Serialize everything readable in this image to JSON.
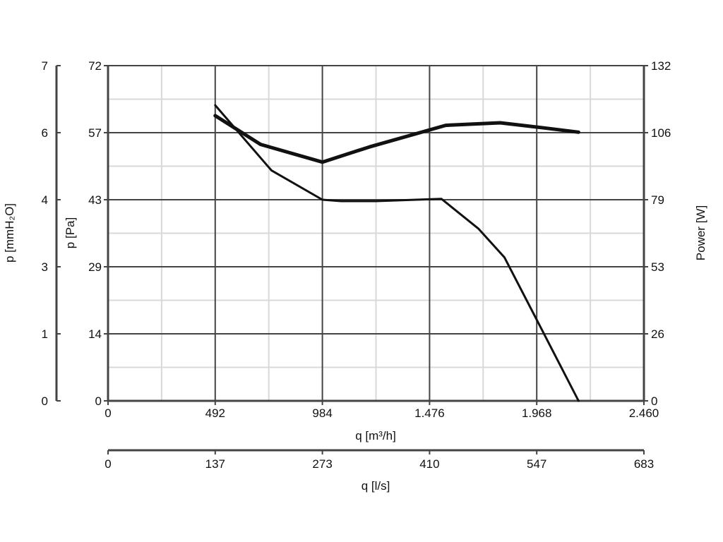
{
  "chart_data": {
    "type": "line",
    "xlabel": "q [m³/h]",
    "x_ticks": [
      "0",
      "492",
      "984",
      "1.476",
      "1.968",
      "2.460"
    ],
    "x_range": [
      0,
      2460
    ],
    "x2label": "q [l/s]",
    "x2_ticks": [
      "0",
      "137",
      "273",
      "410",
      "547",
      "683"
    ],
    "ylabel": "p [Pa]",
    "y_ticks": [
      "0",
      "14",
      "29",
      "43",
      "57",
      "72"
    ],
    "y_range": [
      0,
      72
    ],
    "y2label": "p [mmH₂O]",
    "y2_ticks": [
      "0",
      "1",
      "3",
      "4",
      "6",
      "7"
    ],
    "y3label": "Power [W]",
    "y3_ticks": [
      "0",
      "26",
      "53",
      "79",
      "106",
      "132"
    ],
    "y3_range": [
      0,
      132
    ],
    "grid": true,
    "series": [
      {
        "axis": "pressure",
        "color": "#111111",
        "points": [
          [
            492,
            63.5
          ],
          [
            750,
            49.5
          ],
          [
            984,
            43.2
          ],
          [
            1070,
            42.9
          ],
          [
            1230,
            42.9
          ],
          [
            1530,
            43.4
          ],
          [
            1700,
            37.0
          ],
          [
            1820,
            30.8
          ],
          [
            2000,
            14.5
          ],
          [
            2160,
            0
          ]
        ]
      },
      {
        "axis": "power",
        "color": "#111111",
        "points": [
          [
            492,
            112.3
          ],
          [
            700,
            101.0
          ],
          [
            984,
            94.0
          ],
          [
            1200,
            100.0
          ],
          [
            1550,
            108.5
          ],
          [
            1800,
            109.5
          ],
          [
            2000,
            107.5
          ],
          [
            2160,
            105.8
          ]
        ]
      }
    ]
  }
}
